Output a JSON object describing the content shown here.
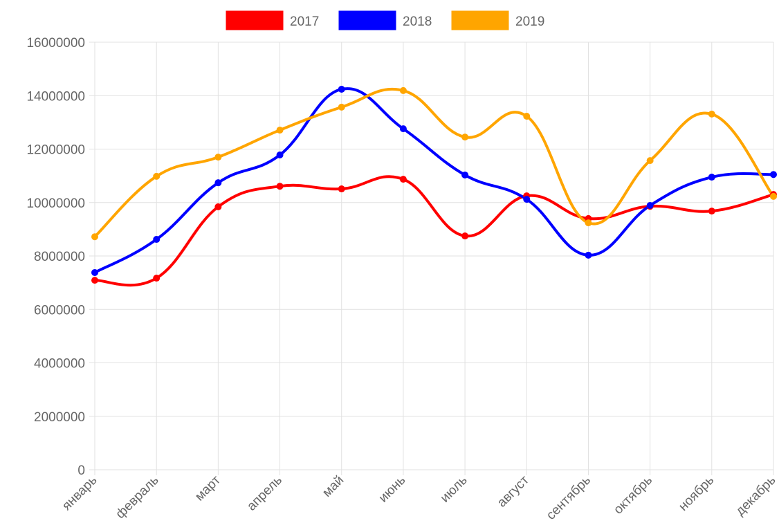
{
  "chart_data": {
    "type": "line",
    "categories": [
      "январь",
      "февраль",
      "март",
      "апрель",
      "май",
      "июнь",
      "июль",
      "август",
      "сентябрь",
      "октябрь",
      "ноябрь",
      "декабрь"
    ],
    "series": [
      {
        "name": "2017",
        "color": "#ff0000",
        "values": [
          7090000,
          7170000,
          9840000,
          10610000,
          10510000,
          10870000,
          8750000,
          10250000,
          9400000,
          9860000,
          9680000,
          10300000
        ]
      },
      {
        "name": "2018",
        "color": "#0000ff",
        "values": [
          7380000,
          8620000,
          10740000,
          11780000,
          14240000,
          12760000,
          11030000,
          10120000,
          8030000,
          9890000,
          10950000,
          11050000
        ]
      },
      {
        "name": "2019",
        "color": "#ffa500",
        "values": [
          8720000,
          10980000,
          11700000,
          12710000,
          13570000,
          14190000,
          12450000,
          13230000,
          9240000,
          11570000,
          13310000,
          10230000
        ]
      }
    ],
    "ylim": [
      0,
      16000000
    ],
    "yticks": [
      0,
      2000000,
      4000000,
      6000000,
      8000000,
      10000000,
      12000000,
      14000000,
      16000000
    ],
    "grid": true,
    "legend": "top"
  }
}
